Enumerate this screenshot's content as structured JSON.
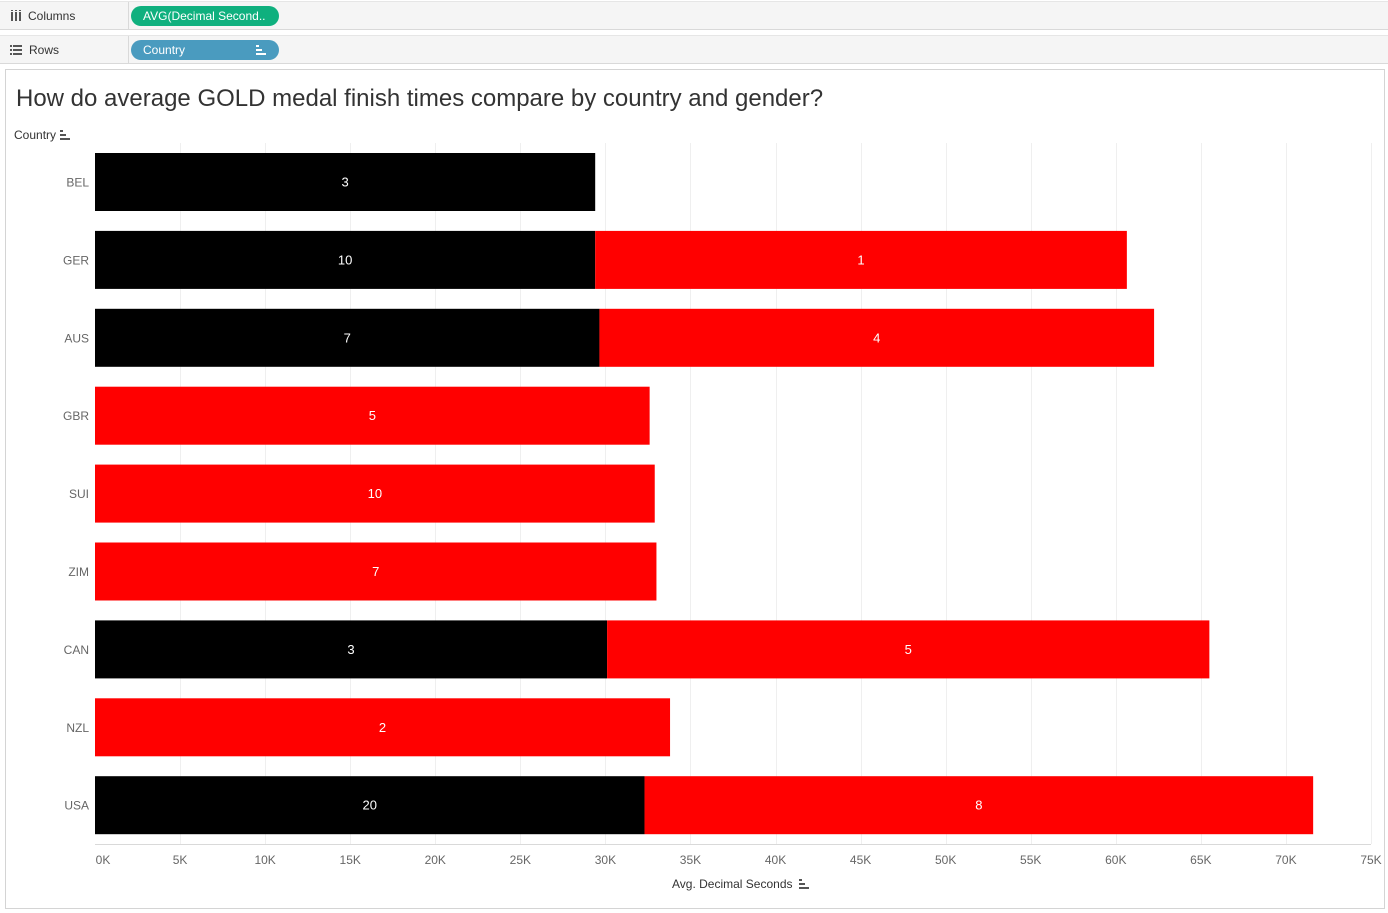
{
  "shelves": {
    "columns_label": "Columns",
    "columns_pill": "AVG(Decimal Second..",
    "rows_label": "Rows",
    "rows_pill": "Country"
  },
  "chart_data": {
    "type": "bar",
    "stacked": true,
    "orientation": "horizontal",
    "title": "How do average GOLD medal finish times compare by country and gender?",
    "ylabel": "Country",
    "xlabel": "Avg. Decimal Seconds",
    "categories": [
      "BEL",
      "GER",
      "AUS",
      "GBR",
      "SUI",
      "ZIM",
      "CAN",
      "NZL",
      "USA"
    ],
    "series": [
      {
        "color": "#000000",
        "values": [
          29400,
          29400,
          29650,
          null,
          null,
          null,
          30100,
          null,
          32300
        ],
        "labels": [
          "3",
          "10",
          "7",
          null,
          null,
          null,
          "3",
          null,
          "20"
        ]
      },
      {
        "color": "#ff0000",
        "values": [
          null,
          31250,
          32600,
          32600,
          32900,
          33000,
          35400,
          33800,
          39300
        ],
        "labels": [
          null,
          "1",
          "4",
          "5",
          "10",
          "7",
          "5",
          "2",
          "8"
        ]
      }
    ],
    "xlim": [
      0,
      75000
    ],
    "xticks": [
      0,
      5000,
      10000,
      15000,
      20000,
      25000,
      30000,
      35000,
      40000,
      45000,
      50000,
      55000,
      60000,
      65000,
      70000,
      75000
    ],
    "xtick_labels": [
      "0K",
      "5K",
      "10K",
      "15K",
      "20K",
      "25K",
      "30K",
      "35K",
      "40K",
      "45K",
      "50K",
      "55K",
      "60K",
      "65K",
      "70K",
      "75K"
    ],
    "grid": "vertical"
  }
}
